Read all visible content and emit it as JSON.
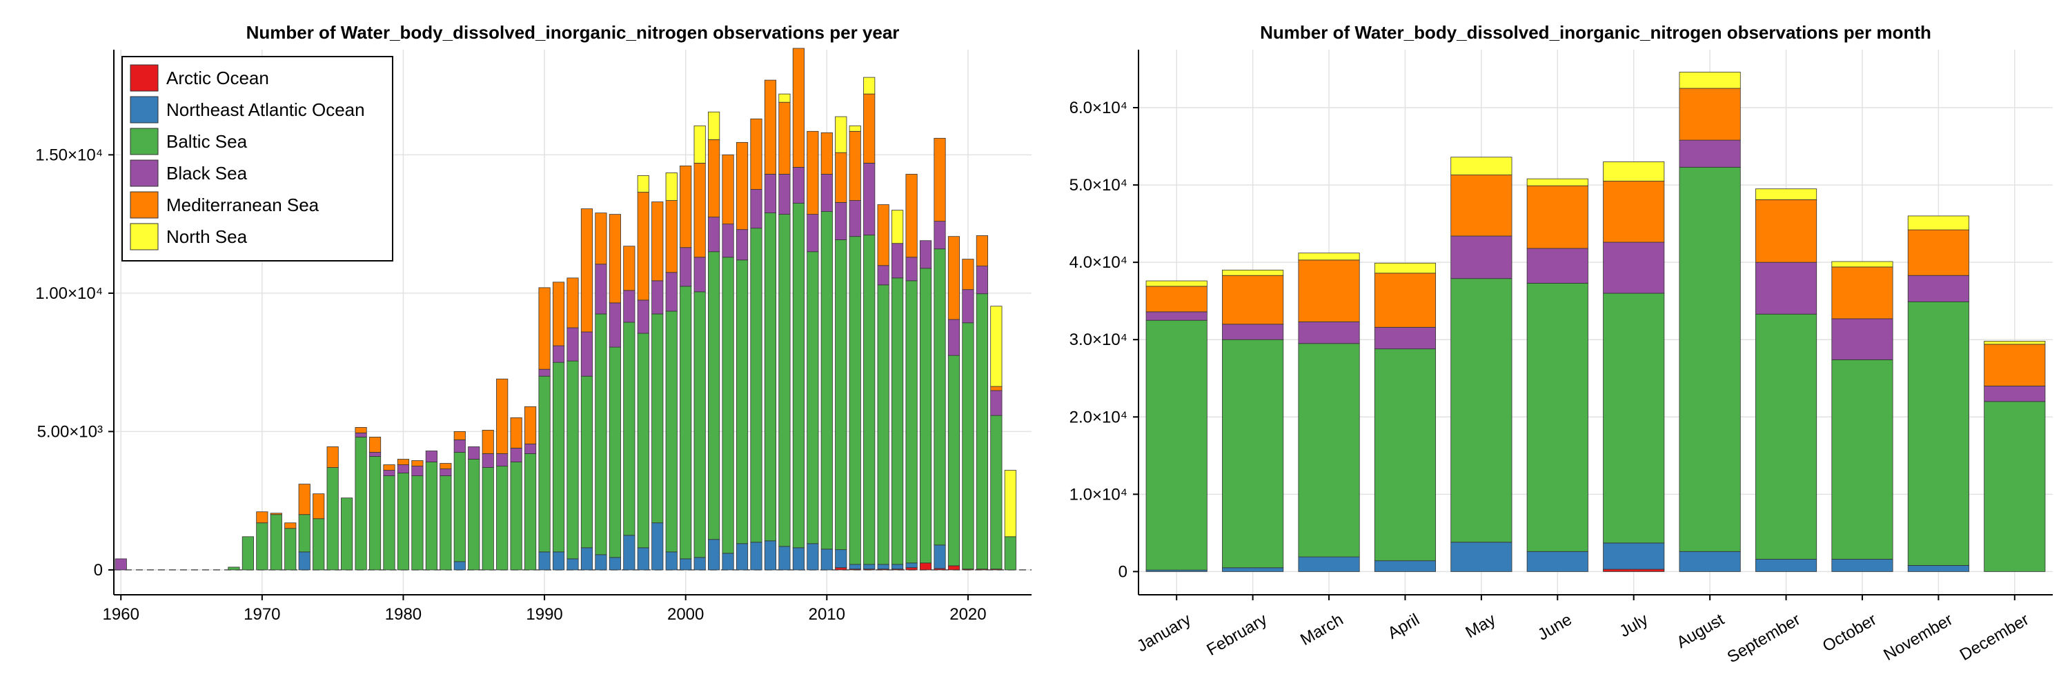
{
  "colors": {
    "Arctic Ocean": "#e41a1c",
    "Northeast Atlantic Ocean": "#377eb8",
    "Baltic Sea": "#4daf4a",
    "Black Sea": "#984ea3",
    "Mediterranean Sea": "#ff7f00",
    "North Sea": "#ffff33"
  },
  "chart_data": [
    {
      "type": "bar",
      "stacked": true,
      "title": "Number of Water_body_dissolved_inorganic_nitrogen observations per year",
      "xlim": [
        1959.5,
        2024.5
      ],
      "ylim": [
        -900,
        18800
      ],
      "xticks": [
        1960,
        1970,
        1980,
        1990,
        2000,
        2010,
        2020
      ],
      "xtick_labels": [
        "1960",
        "1970",
        "1980",
        "1990",
        "2000",
        "2010",
        "2020"
      ],
      "yticks": [
        0,
        5000,
        10000,
        15000
      ],
      "ytick_labels": [
        "0",
        "5.00×10³",
        "1.00×10⁴",
        "1.50×10⁴"
      ],
      "grid": true,
      "legend_position": "top-left",
      "legend": [
        "Arctic Ocean",
        "Northeast Atlantic Ocean",
        "Baltic Sea",
        "Black Sea",
        "Mediterranean Sea",
        "North Sea"
      ],
      "x": [
        1960,
        1961,
        1962,
        1963,
        1964,
        1965,
        1966,
        1967,
        1968,
        1969,
        1970,
        1971,
        1972,
        1973,
        1974,
        1975,
        1976,
        1977,
        1978,
        1979,
        1980,
        1981,
        1982,
        1983,
        1984,
        1985,
        1986,
        1987,
        1988,
        1989,
        1990,
        1991,
        1992,
        1993,
        1994,
        1995,
        1996,
        1997,
        1998,
        1999,
        2000,
        2001,
        2002,
        2003,
        2004,
        2005,
        2006,
        2007,
        2008,
        2009,
        2010,
        2011,
        2012,
        2013,
        2014,
        2015,
        2016,
        2017,
        2018,
        2019,
        2020,
        2021,
        2022,
        2023
      ],
      "series": [
        {
          "name": "Arctic Ocean",
          "values": [
            0,
            0,
            0,
            0,
            0,
            0,
            0,
            0,
            0,
            0,
            0,
            0,
            0,
            0,
            0,
            0,
            0,
            0,
            0,
            0,
            0,
            0,
            0,
            0,
            0,
            0,
            0,
            0,
            0,
            0,
            0,
            0,
            0,
            0,
            0,
            0,
            0,
            0,
            0,
            0,
            0,
            0,
            0,
            0,
            0,
            0,
            0,
            0,
            0,
            0,
            0,
            80,
            30,
            30,
            30,
            30,
            80,
            250,
            50,
            150,
            30,
            30,
            30,
            0
          ]
        },
        {
          "name": "Northeast Atlantic Ocean",
          "values": [
            0,
            0,
            0,
            0,
            0,
            0,
            0,
            0,
            0,
            0,
            0,
            0,
            0,
            650,
            0,
            0,
            0,
            0,
            0,
            0,
            0,
            0,
            0,
            0,
            300,
            0,
            0,
            0,
            0,
            0,
            650,
            650,
            400,
            800,
            550,
            450,
            1250,
            800,
            1700,
            650,
            400,
            450,
            1100,
            600,
            950,
            1000,
            1050,
            850,
            800,
            950,
            750,
            650,
            170,
            170,
            170,
            170,
            170,
            0,
            850,
            0,
            0,
            0,
            0,
            0
          ]
        },
        {
          "name": "Baltic Sea",
          "values": [
            0,
            0,
            0,
            0,
            0,
            0,
            0,
            0,
            100,
            1200,
            1700,
            2000,
            1500,
            1350,
            1850,
            3700,
            2600,
            4800,
            4100,
            3400,
            3500,
            3400,
            3900,
            3400,
            3950,
            4000,
            3700,
            3750,
            3900,
            4200,
            6350,
            6850,
            7150,
            6200,
            8700,
            7600,
            7700,
            7750,
            7550,
            8700,
            9850,
            9600,
            10400,
            10700,
            10250,
            11350,
            11850,
            12000,
            12450,
            10550,
            12200,
            11200,
            11850,
            11900,
            10100,
            10350,
            10200,
            10650,
            10700,
            7600,
            8900,
            9950,
            5550,
            1200
          ]
        },
        {
          "name": "Black Sea",
          "values": [
            400,
            0,
            0,
            0,
            0,
            0,
            0,
            0,
            0,
            0,
            0,
            0,
            0,
            0,
            0,
            0,
            0,
            0,
            0,
            0,
            0,
            0,
            0,
            0,
            0,
            0,
            0,
            0,
            0,
            0,
            0,
            0,
            0,
            0,
            0,
            0,
            0,
            0,
            0,
            0,
            0,
            0,
            0,
            0,
            0,
            0,
            0,
            0,
            0,
            0,
            0,
            0,
            0,
            0,
            0,
            0,
            0,
            0,
            0,
            0,
            0,
            0,
            0,
            0
          ]
        },
        {
          "name": "Black Sea",
          "values": [
            0,
            0,
            0,
            0,
            0,
            0,
            0,
            0,
            0,
            0,
            0,
            0,
            0,
            0,
            0,
            0,
            0,
            150,
            150,
            200,
            300,
            350,
            400,
            250,
            450,
            450,
            500,
            450,
            500,
            350,
            250,
            600,
            1200,
            1600,
            1800,
            1600,
            1150,
            1200,
            1200,
            1400,
            1400,
            1250,
            1250,
            1200,
            1100,
            1400,
            1400,
            1450,
            1300,
            1350,
            1350,
            1350,
            1300,
            2600,
            700,
            1250,
            850,
            1000,
            1000,
            1300,
            1200,
            1000,
            900,
            0
          ]
        },
        {
          "name": "Mediterranean Sea",
          "values": [
            0,
            0,
            0,
            0,
            0,
            0,
            0,
            0,
            0,
            0,
            400,
            50,
            200,
            1100,
            900,
            750,
            0,
            200,
            550,
            200,
            200,
            200,
            0,
            200,
            300,
            0,
            850,
            2700,
            1100,
            1350,
            2950,
            2300,
            1800,
            4450,
            1850,
            3200,
            1600,
            3900,
            2850,
            2600,
            2950,
            3400,
            2800,
            2500,
            3150,
            2550,
            3400,
            2600,
            4300,
            3000,
            1500,
            1800,
            2500,
            2500,
            2200,
            0,
            3000,
            0,
            3000,
            3000,
            1100,
            1100,
            150,
            0
          ]
        },
        {
          "name": "North Sea",
          "values": [
            0,
            0,
            0,
            0,
            0,
            0,
            0,
            0,
            0,
            0,
            0,
            0,
            0,
            0,
            0,
            0,
            0,
            0,
            0,
            0,
            0,
            0,
            0,
            0,
            0,
            0,
            0,
            0,
            0,
            0,
            0,
            0,
            0,
            0,
            0,
            0,
            0,
            600,
            0,
            1000,
            0,
            1350,
            1000,
            0,
            0,
            0,
            0,
            300,
            0,
            0,
            0,
            1300,
            200,
            600,
            0,
            1200,
            0,
            0,
            0,
            0,
            0,
            0,
            2900,
            2400
          ]
        }
      ]
    },
    {
      "type": "bar",
      "stacked": true,
      "title": "Number of Water_body_dissolved_inorganic_nitrogen observations per month",
      "categories": [
        "January",
        "February",
        "March",
        "April",
        "May",
        "June",
        "July",
        "August",
        "September",
        "October",
        "November",
        "December"
      ],
      "ylim": [
        -3000,
        67500
      ],
      "yticks": [
        0,
        10000,
        20000,
        30000,
        40000,
        50000,
        60000
      ],
      "ytick_labels": [
        "0",
        "1.0×10⁴",
        "2.0×10⁴",
        "3.0×10⁴",
        "4.0×10⁴",
        "5.0×10⁴",
        "6.0×10⁴"
      ],
      "grid": true,
      "series": [
        {
          "name": "Arctic Ocean",
          "values": [
            0,
            0,
            0,
            0,
            0,
            0,
            300,
            0,
            0,
            0,
            0,
            0
          ]
        },
        {
          "name": "Northeast Atlantic Ocean",
          "values": [
            200,
            500,
            1900,
            1400,
            3800,
            2600,
            3400,
            2600,
            1600,
            1600,
            800,
            0
          ]
        },
        {
          "name": "Baltic Sea",
          "values": [
            32300,
            29500,
            27600,
            27400,
            34100,
            34700,
            32300,
            49700,
            31700,
            25800,
            34100,
            22000
          ]
        },
        {
          "name": "Black Sea",
          "values": [
            1100,
            2000,
            2800,
            2800,
            5500,
            4500,
            6600,
            3500,
            6700,
            5300,
            3400,
            2000
          ]
        },
        {
          "name": "Mediterranean Sea",
          "values": [
            3300,
            6300,
            8000,
            7000,
            7900,
            8100,
            7900,
            6700,
            8100,
            6700,
            5900,
            5400
          ]
        },
        {
          "name": "North Sea",
          "values": [
            700,
            700,
            900,
            1300,
            2300,
            900,
            2500,
            2100,
            1400,
            700,
            1800,
            400
          ]
        }
      ]
    }
  ]
}
